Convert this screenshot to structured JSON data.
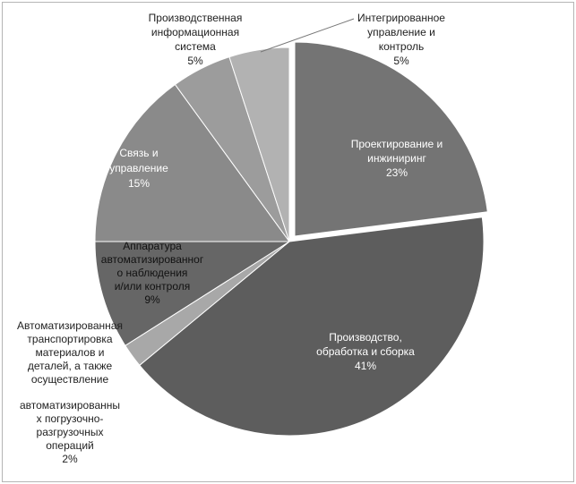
{
  "chart_data": {
    "type": "pie",
    "title": "",
    "slices": [
      {
        "label": [
          "Проектирование и",
          "инжиниринг"
        ],
        "percent_label": "23%",
        "value": 23,
        "color": "#747474",
        "text_color": "#ffffff"
      },
      {
        "label": [
          "Производство,",
          "обработка и сборка"
        ],
        "percent_label": "41%",
        "value": 41,
        "color": "#5d5d5d",
        "text_color": "#ffffff"
      },
      {
        "label": [
          "Автоматизированная",
          "транспортировка",
          "материалов и",
          "деталей, а также",
          "осуществление",
          "",
          "автоматизированны",
          "х погрузочно-",
          "разгрузочных",
          "операций"
        ],
        "percent_label": "2%",
        "value": 2,
        "color": "#a8a8a8",
        "text_color": "#222222"
      },
      {
        "label": [
          "Аппаратура",
          "автоматизированног",
          "о наблюдения",
          "и/или контроля"
        ],
        "percent_label": "9%",
        "value": 9,
        "color": "#666666",
        "text_color": "#111111"
      },
      {
        "label": [
          "Связь и",
          "управление"
        ],
        "percent_label": "15%",
        "value": 15,
        "color": "#8a8a8a",
        "text_color": "#ffffff"
      },
      {
        "label": [
          "Производственная",
          "информационная",
          "система"
        ],
        "percent_label": "5%",
        "value": 5,
        "color": "#9c9c9c",
        "text_color": "#222222"
      },
      {
        "label": [
          "Интегрированное",
          "управление и",
          "контроль"
        ],
        "percent_label": "5%",
        "value": 5,
        "color": "#b2b2b2",
        "text_color": "#222222"
      }
    ]
  }
}
